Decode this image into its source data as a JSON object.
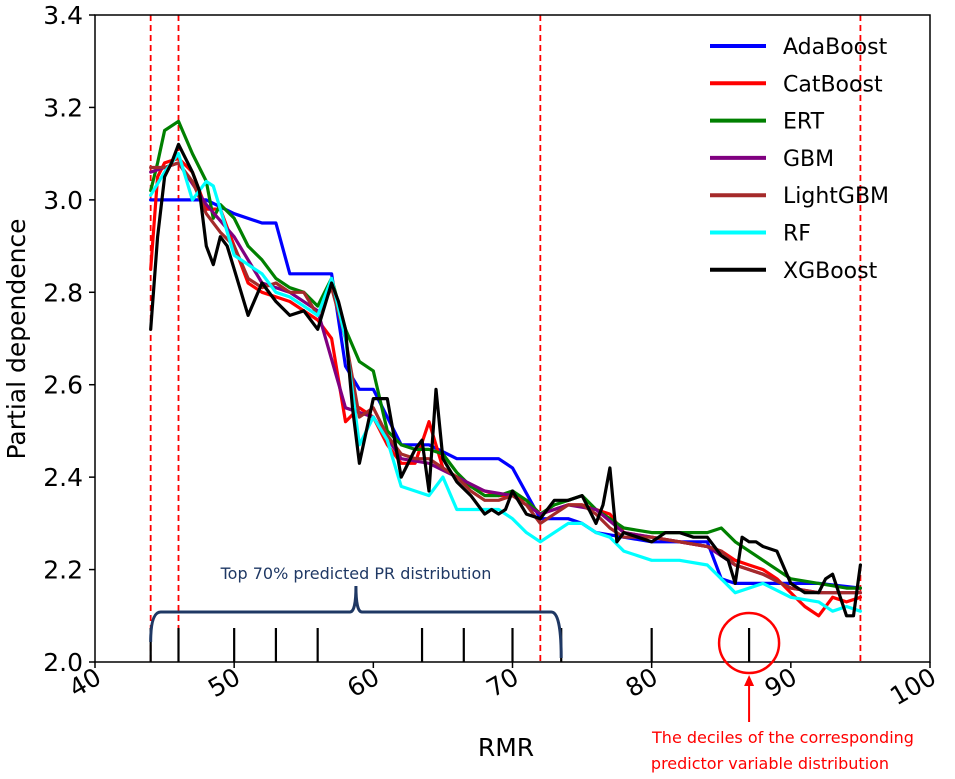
{
  "chart_data": {
    "type": "line",
    "title": "",
    "xlabel": "RMR",
    "ylabel": "Partial dependence",
    "xlim": [
      40,
      100
    ],
    "ylim": [
      2.0,
      3.4
    ],
    "xticks": [
      40,
      50,
      60,
      70,
      80,
      90,
      100
    ],
    "yticks": [
      2.0,
      2.2,
      2.4,
      2.6,
      2.8,
      3.0,
      3.2,
      3.4
    ],
    "xtick_labels": [
      "40",
      "50",
      "60",
      "70",
      "80",
      "90",
      "100"
    ],
    "ytick_labels": [
      "2.0",
      "2.2",
      "2.4",
      "2.6",
      "2.8",
      "3.0",
      "3.2",
      "3.4"
    ],
    "legend_position": "top-right",
    "series": [
      {
        "name": "AdaBoost",
        "color": "#0000ff",
        "x": [
          44,
          45,
          46,
          48,
          50,
          52,
          53,
          54,
          56,
          57,
          58,
          59,
          60,
          62,
          64,
          66,
          68,
          69,
          70,
          72,
          74,
          75,
          76,
          78,
          80,
          84,
          85,
          86,
          88,
          90,
          92,
          95
        ],
        "y": [
          3.0,
          3.0,
          3.0,
          3.0,
          2.97,
          2.95,
          2.95,
          2.84,
          2.84,
          2.84,
          2.64,
          2.59,
          2.59,
          2.47,
          2.47,
          2.44,
          2.44,
          2.44,
          2.42,
          2.31,
          2.31,
          2.3,
          2.28,
          2.27,
          2.26,
          2.26,
          2.18,
          2.17,
          2.17,
          2.17,
          2.17,
          2.16
        ]
      },
      {
        "name": "CatBoost",
        "color": "#ff0000",
        "x": [
          44,
          44.5,
          45,
          46,
          47,
          48,
          49,
          50,
          51,
          52,
          53,
          54,
          55,
          56,
          57,
          58,
          59,
          60,
          61,
          62,
          63,
          64,
          65,
          66,
          67,
          68,
          69,
          70,
          71,
          72,
          73,
          74,
          75,
          76,
          77,
          78,
          80,
          82,
          84,
          85,
          86,
          87,
          88,
          89,
          90,
          91,
          92,
          93,
          94,
          95
        ],
        "y": [
          2.85,
          3.05,
          3.08,
          3.09,
          3.06,
          2.98,
          2.98,
          2.9,
          2.82,
          2.8,
          2.79,
          2.78,
          2.76,
          2.74,
          2.7,
          2.52,
          2.55,
          2.53,
          2.47,
          2.43,
          2.43,
          2.52,
          2.42,
          2.4,
          2.38,
          2.37,
          2.36,
          2.36,
          2.35,
          2.32,
          2.33,
          2.34,
          2.34,
          2.33,
          2.32,
          2.28,
          2.27,
          2.26,
          2.25,
          2.24,
          2.22,
          2.21,
          2.2,
          2.18,
          2.15,
          2.12,
          2.1,
          2.14,
          2.13,
          2.14
        ]
      },
      {
        "name": "ERT",
        "color": "#008000",
        "x": [
          44,
          44.5,
          45,
          46,
          47,
          48,
          48.5,
          49,
          50,
          51,
          52,
          53,
          54,
          55,
          56,
          57,
          58,
          59,
          60,
          61,
          62,
          63,
          64,
          65,
          66,
          67,
          68,
          69,
          70,
          71,
          72,
          73,
          74,
          75,
          76,
          77,
          78,
          80,
          82,
          84,
          85,
          86,
          88,
          90,
          92,
          94,
          95
        ],
        "y": [
          3.02,
          3.08,
          3.15,
          3.17,
          3.1,
          3.04,
          2.96,
          2.99,
          2.96,
          2.9,
          2.87,
          2.83,
          2.81,
          2.8,
          2.77,
          2.83,
          2.72,
          2.65,
          2.63,
          2.5,
          2.47,
          2.46,
          2.46,
          2.45,
          2.41,
          2.38,
          2.36,
          2.36,
          2.37,
          2.35,
          2.32,
          2.34,
          2.35,
          2.36,
          2.33,
          2.31,
          2.29,
          2.28,
          2.28,
          2.28,
          2.29,
          2.26,
          2.22,
          2.18,
          2.17,
          2.16,
          2.16
        ]
      },
      {
        "name": "GBM",
        "color": "#800080",
        "x": [
          44,
          45,
          46,
          48,
          50,
          52,
          54,
          56,
          58,
          60,
          62,
          64,
          66,
          68,
          70,
          72,
          74,
          76,
          78,
          80,
          84,
          86,
          88,
          90,
          92,
          95
        ],
        "y": [
          3.06,
          3.07,
          3.08,
          2.99,
          2.92,
          2.82,
          2.8,
          2.76,
          2.55,
          2.53,
          2.44,
          2.43,
          2.4,
          2.37,
          2.36,
          2.32,
          2.34,
          2.33,
          2.28,
          2.27,
          2.25,
          2.21,
          2.19,
          2.16,
          2.15,
          2.15
        ]
      },
      {
        "name": "LightGBM",
        "color": "#a52a2a",
        "x": [
          44,
          45,
          46,
          47,
          48,
          49,
          50,
          51,
          52,
          53,
          54,
          55,
          56,
          57,
          58,
          59,
          60,
          61,
          62,
          63,
          64,
          65,
          66,
          67,
          68,
          69,
          70,
          71,
          72,
          73,
          74,
          75,
          76,
          77,
          78,
          80,
          82,
          84,
          85,
          86,
          88,
          90,
          92,
          94,
          95
        ],
        "y": [
          3.07,
          3.07,
          3.08,
          3.04,
          2.97,
          2.93,
          2.9,
          2.83,
          2.81,
          2.82,
          2.8,
          2.8,
          2.75,
          2.81,
          2.7,
          2.53,
          2.55,
          2.49,
          2.45,
          2.44,
          2.44,
          2.42,
          2.4,
          2.37,
          2.35,
          2.35,
          2.36,
          2.34,
          2.3,
          2.32,
          2.34,
          2.34,
          2.32,
          2.29,
          2.27,
          2.27,
          2.26,
          2.25,
          2.24,
          2.21,
          2.19,
          2.16,
          2.15,
          2.15,
          2.15
        ]
      },
      {
        "name": "RF",
        "color": "#00ffff",
        "x": [
          44,
          45,
          46,
          47,
          47.5,
          48,
          48.5,
          49,
          50,
          51,
          52,
          53,
          54,
          55,
          56,
          57,
          58,
          59,
          60,
          61,
          62,
          63,
          64,
          65,
          66,
          67,
          68,
          69,
          70,
          71,
          72,
          73,
          74,
          75,
          76,
          77,
          78,
          80,
          82,
          84,
          85,
          86,
          87,
          88,
          90,
          92,
          93,
          94,
          95
        ],
        "y": [
          3.01,
          3.06,
          3.1,
          3.0,
          3.02,
          3.04,
          3.03,
          2.98,
          2.88,
          2.86,
          2.84,
          2.8,
          2.79,
          2.77,
          2.75,
          2.83,
          2.7,
          2.47,
          2.53,
          2.48,
          2.38,
          2.37,
          2.36,
          2.4,
          2.33,
          2.33,
          2.33,
          2.33,
          2.31,
          2.28,
          2.26,
          2.28,
          2.3,
          2.3,
          2.28,
          2.27,
          2.24,
          2.22,
          2.22,
          2.21,
          2.18,
          2.15,
          2.16,
          2.17,
          2.14,
          2.13,
          2.11,
          2.12,
          2.11
        ]
      },
      {
        "name": "XGBoost",
        "color": "#000000",
        "x": [
          44,
          44.5,
          45,
          45.5,
          46,
          46.5,
          47,
          47.5,
          48,
          48.5,
          49,
          49.5,
          50,
          51,
          52,
          53,
          54,
          55,
          56,
          57,
          57.5,
          58,
          58.5,
          59,
          60,
          61,
          62,
          63,
          63.5,
          64,
          64.5,
          65,
          66,
          67,
          68,
          68.5,
          69,
          69.5,
          70,
          71,
          72,
          73,
          74,
          75,
          76,
          76.5,
          77,
          77.5,
          78,
          79,
          80,
          81,
          82,
          83,
          84,
          85,
          85.5,
          86,
          86.5,
          87,
          87.5,
          88,
          89,
          90,
          91,
          92,
          92.5,
          93,
          94,
          94.5,
          95
        ],
        "y": [
          2.72,
          2.92,
          3.05,
          3.08,
          3.12,
          3.09,
          3.06,
          3.02,
          2.9,
          2.86,
          2.92,
          2.9,
          2.85,
          2.75,
          2.82,
          2.78,
          2.75,
          2.76,
          2.72,
          2.82,
          2.78,
          2.72,
          2.55,
          2.43,
          2.57,
          2.57,
          2.4,
          2.46,
          2.48,
          2.37,
          2.59,
          2.44,
          2.39,
          2.36,
          2.32,
          2.33,
          2.32,
          2.33,
          2.37,
          2.32,
          2.31,
          2.35,
          2.35,
          2.36,
          2.3,
          2.34,
          2.42,
          2.26,
          2.28,
          2.27,
          2.26,
          2.28,
          2.28,
          2.27,
          2.27,
          2.23,
          2.22,
          2.17,
          2.27,
          2.26,
          2.26,
          2.25,
          2.24,
          2.17,
          2.15,
          2.15,
          2.18,
          2.19,
          2.1,
          2.1,
          2.21
        ]
      }
    ],
    "vlines": [
      44,
      46,
      72,
      95
    ],
    "decile_ticks": [
      44,
      46,
      50,
      53,
      56,
      63.5,
      66.5,
      70,
      73.5,
      80,
      87
    ],
    "annotations": {
      "bracket_text": "Top 70% predicted PR distribution",
      "bracket_range": [
        44,
        73.5
      ],
      "circled_decile": 87,
      "deciles_text_line1": "The deciles of the corresponding",
      "deciles_text_line2": "predictor variable distribution"
    }
  }
}
